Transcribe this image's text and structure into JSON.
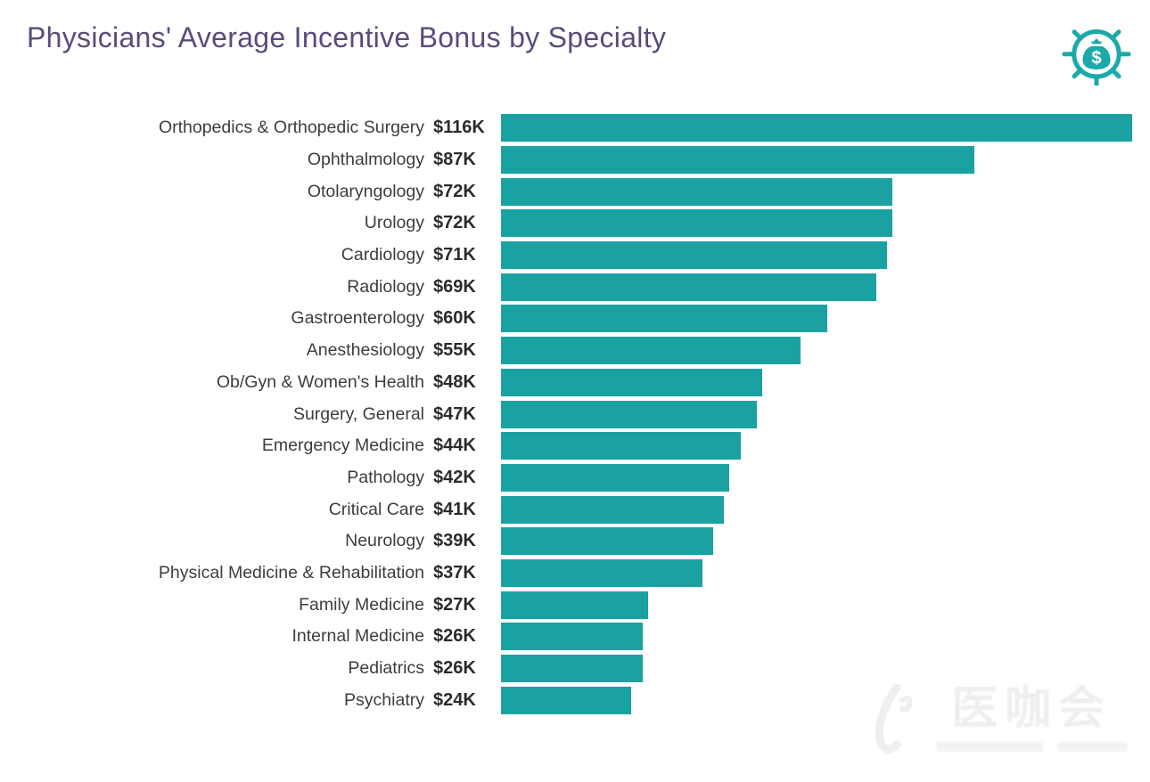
{
  "header": {
    "title": "Physicians' Average Incentive Bonus by Specialty",
    "icon": "money-bag-gauge-icon"
  },
  "colors": {
    "bar": "#1aa2a2",
    "title": "#5b4a7d",
    "category_label": "#3d3d3d",
    "value_label": "#2b2b2b",
    "header_icon": "#1ba9a9",
    "watermark": "#efefef"
  },
  "watermark": {
    "text": "医咖会"
  },
  "chart_data": {
    "type": "bar",
    "orientation": "horizontal",
    "title": "Physicians' Average Incentive Bonus by Specialty",
    "unit": "USD thousands per year",
    "xlim": [
      0,
      116
    ],
    "grid": false,
    "legend": false,
    "categories": [
      "Orthopedics & Orthopedic Surgery",
      "Ophthalmology",
      "Otolaryngology",
      "Urology",
      "Cardiology",
      "Radiology",
      "Gastroenterology",
      "Anesthesiology",
      "Ob/Gyn & Women's Health",
      "Surgery, General",
      "Emergency Medicine",
      "Pathology",
      "Critical Care",
      "Neurology",
      "Physical Medicine & Rehabilitation",
      "Family Medicine",
      "Internal Medicine",
      "Pediatrics",
      "Psychiatry"
    ],
    "values": [
      116,
      87,
      72,
      72,
      71,
      69,
      60,
      55,
      48,
      47,
      44,
      42,
      41,
      39,
      37,
      27,
      26,
      26,
      24
    ],
    "value_labels": [
      "$116K",
      "$87K",
      "$72K",
      "$72K",
      "$71K",
      "$69K",
      "$60K",
      "$55K",
      "$48K",
      "$47K",
      "$44K",
      "$42K",
      "$41K",
      "$39K",
      "$37K",
      "$27K",
      "$26K",
      "$26K",
      "$24K"
    ]
  }
}
